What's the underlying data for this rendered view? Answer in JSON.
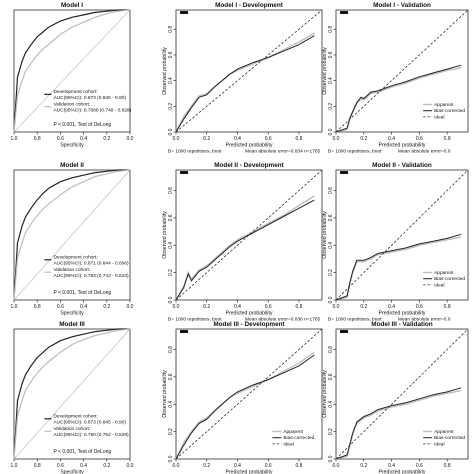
{
  "colors": {
    "dark": "#222222",
    "light": "#bdbdbd",
    "ideal": "#333333",
    "diag": "#c8c8c8"
  },
  "chart_data": [
    {
      "type": "line",
      "kind": "roc",
      "title": "Model I",
      "xlabel": "Specificity",
      "xticks": [
        "1.0",
        "0.8",
        "0.6",
        "0.4",
        "0.2",
        "0.0"
      ],
      "xlim": [
        1.0,
        0.0
      ],
      "ylim": [
        0.0,
        1.0
      ],
      "legend": [
        "Development cohort:",
        "AUC(95%CI): 0.873 (0.846 - 0.90)",
        "Validation cohort:",
        "AUC(95%CI): 0.7688 (0.749 - 0.828)"
      ],
      "pvalue": "P < 0.001, Test of DeLong",
      "series": [
        {
          "name": "Development cohort",
          "x": [
            1.0,
            0.97,
            0.93,
            0.9,
            0.85,
            0.8,
            0.75,
            0.7,
            0.6,
            0.5,
            0.4,
            0.3,
            0.2,
            0.1,
            0.0
          ],
          "y": [
            0.0,
            0.45,
            0.58,
            0.65,
            0.72,
            0.78,
            0.82,
            0.86,
            0.91,
            0.94,
            0.96,
            0.98,
            0.99,
            1.0,
            1.0
          ]
        },
        {
          "name": "Validation cohort",
          "x": [
            1.0,
            0.97,
            0.93,
            0.9,
            0.85,
            0.8,
            0.75,
            0.7,
            0.6,
            0.5,
            0.4,
            0.3,
            0.2,
            0.1,
            0.0
          ],
          "y": [
            0.0,
            0.3,
            0.42,
            0.5,
            0.57,
            0.63,
            0.68,
            0.72,
            0.8,
            0.86,
            0.9,
            0.94,
            0.97,
            0.99,
            1.0
          ]
        }
      ]
    },
    {
      "type": "line",
      "kind": "calibration",
      "title": "Model I - Development",
      "xlabel": "Predicted probability",
      "ylabel": "Observed probability",
      "xticks": [
        "0.0",
        "0.2",
        "0.4",
        "0.6",
        "0.8"
      ],
      "yticks": [
        "0.0",
        "0.2",
        "0.4",
        "0.6",
        "0.8"
      ],
      "xlim": [
        0.0,
        0.95
      ],
      "ylim": [
        0.0,
        0.95
      ],
      "legend": [],
      "footer_left": "B= 1000 repetitions, boot",
      "footer_right": "Mean absolute error=0.034 n=1765",
      "series": [
        {
          "name": "Apparent",
          "x": [
            0.0,
            0.05,
            0.1,
            0.15,
            0.2,
            0.25,
            0.3,
            0.35,
            0.4,
            0.5,
            0.6,
            0.7,
            0.8,
            0.9
          ],
          "y": [
            0.0,
            0.12,
            0.2,
            0.28,
            0.3,
            0.35,
            0.4,
            0.45,
            0.48,
            0.53,
            0.58,
            0.64,
            0.7,
            0.77
          ]
        },
        {
          "name": "Bias-corrected",
          "x": [
            0.0,
            0.05,
            0.1,
            0.15,
            0.2,
            0.25,
            0.3,
            0.35,
            0.4,
            0.5,
            0.6,
            0.7,
            0.8,
            0.9
          ],
          "y": [
            0.0,
            0.1,
            0.19,
            0.27,
            0.29,
            0.35,
            0.4,
            0.45,
            0.49,
            0.54,
            0.58,
            0.63,
            0.68,
            0.75
          ]
        },
        {
          "name": "Ideal",
          "x": [
            0.0,
            0.95
          ],
          "y": [
            0.0,
            0.95
          ]
        }
      ]
    },
    {
      "type": "line",
      "kind": "calibration",
      "title": "Model I - Validation",
      "xlabel": "Predicted probability",
      "ylabel": "Observed probability",
      "xticks": [
        "0.0",
        "0.2",
        "0.4",
        "0.6",
        "0.8"
      ],
      "yticks": [
        "0.0",
        "0.2",
        "0.4",
        "0.6",
        "0.8"
      ],
      "xlim": [
        0.0,
        0.95
      ],
      "ylim": [
        0.0,
        0.95
      ],
      "legend": [
        "Apparent",
        "Bias-corrected",
        "Ideal"
      ],
      "footer_left": "B= 1000 repetitions, boot",
      "footer_right": "Mean absolute error=0.0",
      "series": [
        {
          "name": "Apparent",
          "x": [
            0.0,
            0.08,
            0.1,
            0.12,
            0.15,
            0.18,
            0.2,
            0.25,
            0.3,
            0.4,
            0.5,
            0.6,
            0.7,
            0.8,
            0.9
          ],
          "y": [
            0.0,
            0.02,
            0.1,
            0.15,
            0.22,
            0.26,
            0.25,
            0.3,
            0.31,
            0.35,
            0.38,
            0.42,
            0.45,
            0.48,
            0.5
          ]
        },
        {
          "name": "Bias-corrected",
          "x": [
            0.0,
            0.08,
            0.1,
            0.12,
            0.15,
            0.18,
            0.2,
            0.25,
            0.3,
            0.4,
            0.5,
            0.6,
            0.7,
            0.8,
            0.9
          ],
          "y": [
            0.0,
            0.03,
            0.11,
            0.16,
            0.23,
            0.27,
            0.26,
            0.31,
            0.32,
            0.36,
            0.39,
            0.43,
            0.46,
            0.49,
            0.52
          ]
        },
        {
          "name": "Ideal",
          "x": [
            0.0,
            0.95
          ],
          "y": [
            0.0,
            0.95
          ]
        }
      ]
    },
    {
      "type": "line",
      "kind": "roc",
      "title": "Model II",
      "xlabel": "Specificity",
      "xticks": [
        "1.0",
        "0.8",
        "0.6",
        "0.4",
        "0.2",
        "0.0"
      ],
      "xlim": [
        1.0,
        0.0
      ],
      "ylim": [
        0.0,
        1.0
      ],
      "legend": [
        "Development cohort:",
        "AUC(95%CI): 0.871 (0.844 - 0.896)",
        "Validation cohort:",
        "AUC(95%CI): 0.783 (0.743 - 0.823)"
      ],
      "pvalue": "P < 0.001, Test of DeLong",
      "series": [
        {
          "name": "Development cohort",
          "x": [
            1.0,
            0.97,
            0.93,
            0.9,
            0.85,
            0.8,
            0.75,
            0.7,
            0.6,
            0.5,
            0.4,
            0.3,
            0.2,
            0.1,
            0.0
          ],
          "y": [
            0.0,
            0.44,
            0.57,
            0.64,
            0.71,
            0.77,
            0.82,
            0.86,
            0.91,
            0.94,
            0.96,
            0.98,
            0.99,
            1.0,
            1.0
          ]
        },
        {
          "name": "Validation cohort",
          "x": [
            1.0,
            0.97,
            0.93,
            0.9,
            0.85,
            0.8,
            0.75,
            0.7,
            0.6,
            0.5,
            0.4,
            0.3,
            0.2,
            0.1,
            0.0
          ],
          "y": [
            0.0,
            0.32,
            0.44,
            0.52,
            0.59,
            0.65,
            0.7,
            0.74,
            0.81,
            0.87,
            0.91,
            0.95,
            0.97,
            0.99,
            1.0
          ]
        }
      ]
    },
    {
      "type": "line",
      "kind": "calibration",
      "title": "Model II - Development",
      "xlabel": "Predicted probability",
      "ylabel": "Observed probability",
      "xticks": [
        "0.0",
        "0.2",
        "0.4",
        "0.6",
        "0.8"
      ],
      "yticks": [
        "0.0",
        "0.2",
        "0.4",
        "0.6",
        "0.8"
      ],
      "xlim": [
        0.0,
        0.95
      ],
      "ylim": [
        0.0,
        0.95
      ],
      "legend": [],
      "footer_left": "B= 1000 repetitions, boot",
      "footer_right": "Mean absolute error=0.036 n=1765",
      "series": [
        {
          "name": "Apparent",
          "x": [
            0.0,
            0.05,
            0.08,
            0.1,
            0.15,
            0.2,
            0.25,
            0.3,
            0.35,
            0.4,
            0.5,
            0.6,
            0.7,
            0.8,
            0.9
          ],
          "y": [
            0.0,
            0.1,
            0.2,
            0.15,
            0.22,
            0.25,
            0.3,
            0.35,
            0.4,
            0.44,
            0.5,
            0.56,
            0.62,
            0.69,
            0.76
          ]
        },
        {
          "name": "Bias-corrected",
          "x": [
            0.0,
            0.05,
            0.08,
            0.1,
            0.15,
            0.2,
            0.25,
            0.3,
            0.35,
            0.4,
            0.5,
            0.6,
            0.7,
            0.8,
            0.9
          ],
          "y": [
            0.0,
            0.09,
            0.19,
            0.14,
            0.21,
            0.24,
            0.29,
            0.34,
            0.39,
            0.43,
            0.49,
            0.55,
            0.61,
            0.67,
            0.73
          ]
        },
        {
          "name": "Ideal",
          "x": [
            0.0,
            0.95
          ],
          "y": [
            0.0,
            0.95
          ]
        }
      ]
    },
    {
      "type": "line",
      "kind": "calibration",
      "title": "Model II - Validation",
      "xlabel": "Predicted probability",
      "ylabel": "Observed probability",
      "xticks": [
        "0.0",
        "0.2",
        "0.4",
        "0.6",
        "0.8"
      ],
      "yticks": [
        "0.0",
        "0.2",
        "0.4",
        "0.6",
        "0.8"
      ],
      "xlim": [
        0.0,
        0.95
      ],
      "ylim": [
        0.0,
        0.95
      ],
      "legend": [
        "Apparent",
        "Bias-corrected",
        "Ideal"
      ],
      "footer_left": "B= 1000 repetitions, boot",
      "footer_right": "Mean absolute error=0.0",
      "series": [
        {
          "name": "Apparent",
          "x": [
            0.0,
            0.08,
            0.1,
            0.12,
            0.15,
            0.2,
            0.25,
            0.3,
            0.4,
            0.5,
            0.6,
            0.7,
            0.8,
            0.9
          ],
          "y": [
            0.0,
            0.02,
            0.12,
            0.2,
            0.28,
            0.28,
            0.3,
            0.33,
            0.35,
            0.37,
            0.4,
            0.42,
            0.44,
            0.46
          ]
        },
        {
          "name": "Bias-corrected",
          "x": [
            0.0,
            0.08,
            0.1,
            0.12,
            0.15,
            0.2,
            0.25,
            0.3,
            0.4,
            0.5,
            0.6,
            0.7,
            0.8,
            0.9
          ],
          "y": [
            0.0,
            0.03,
            0.13,
            0.21,
            0.29,
            0.29,
            0.31,
            0.34,
            0.36,
            0.38,
            0.41,
            0.43,
            0.45,
            0.48
          ]
        },
        {
          "name": "Ideal",
          "x": [
            0.0,
            0.95
          ],
          "y": [
            0.0,
            0.95
          ]
        }
      ]
    },
    {
      "type": "line",
      "kind": "roc",
      "title": "Model III",
      "xlabel": "Specificity",
      "xticks": [
        "1.0",
        "0.8",
        "0.6",
        "0.4",
        "0.2",
        "0.0"
      ],
      "xlim": [
        1.0,
        0.0
      ],
      "ylim": [
        0.0,
        1.0
      ],
      "legend": [
        "Development cohort:",
        "AUC(95%CI): 0.873 (0.845 - 0.90)",
        "Validation cohort:",
        "AUC(95%CI): 0.790 (0.752 - 0.828)"
      ],
      "pvalue": "P < 0.001, Test of DeLong",
      "series": [
        {
          "name": "Development cohort",
          "x": [
            1.0,
            0.97,
            0.93,
            0.9,
            0.85,
            0.8,
            0.75,
            0.7,
            0.6,
            0.5,
            0.4,
            0.3,
            0.2,
            0.1,
            0.0
          ],
          "y": [
            0.0,
            0.45,
            0.58,
            0.65,
            0.72,
            0.78,
            0.82,
            0.86,
            0.91,
            0.94,
            0.96,
            0.98,
            0.99,
            1.0,
            1.0
          ]
        },
        {
          "name": "Validation cohort",
          "x": [
            1.0,
            0.97,
            0.93,
            0.9,
            0.85,
            0.8,
            0.75,
            0.7,
            0.6,
            0.5,
            0.4,
            0.3,
            0.2,
            0.1,
            0.0
          ],
          "y": [
            0.0,
            0.33,
            0.45,
            0.53,
            0.6,
            0.66,
            0.71,
            0.75,
            0.82,
            0.88,
            0.92,
            0.95,
            0.97,
            0.99,
            1.0
          ]
        }
      ]
    },
    {
      "type": "line",
      "kind": "calibration",
      "title": "Model III - Development",
      "xlabel": "Predicted probability",
      "ylabel": "Observed probability",
      "xticks": [
        "0.0",
        "0.2",
        "0.4",
        "0.6",
        "0.8"
      ],
      "yticks": [
        "0.0",
        "0.2",
        "0.4",
        "0.6",
        "0.8"
      ],
      "xlim": [
        0.0,
        0.95
      ],
      "ylim": [
        0.0,
        0.95
      ],
      "legend": [
        "Apparent",
        "Bias-corrected",
        "Ideal"
      ],
      "footer_left": "B= 1000 repetitions, boot",
      "footer_right": "Mean absolute error=0.034 n=1765",
      "series": [
        {
          "name": "Apparent",
          "x": [
            0.0,
            0.05,
            0.1,
            0.15,
            0.2,
            0.25,
            0.3,
            0.35,
            0.4,
            0.5,
            0.6,
            0.7,
            0.8,
            0.9
          ],
          "y": [
            0.0,
            0.12,
            0.2,
            0.27,
            0.3,
            0.35,
            0.4,
            0.45,
            0.48,
            0.53,
            0.58,
            0.64,
            0.7,
            0.78
          ]
        },
        {
          "name": "Bias-corrected",
          "x": [
            0.0,
            0.05,
            0.1,
            0.15,
            0.2,
            0.25,
            0.3,
            0.35,
            0.4,
            0.5,
            0.6,
            0.7,
            0.8,
            0.9
          ],
          "y": [
            0.0,
            0.1,
            0.19,
            0.26,
            0.29,
            0.35,
            0.4,
            0.45,
            0.49,
            0.54,
            0.58,
            0.63,
            0.68,
            0.76
          ]
        },
        {
          "name": "Ideal",
          "x": [
            0.0,
            0.95
          ],
          "y": [
            0.0,
            0.95
          ]
        }
      ]
    },
    {
      "type": "line",
      "kind": "calibration",
      "title": "Model III - Validation",
      "xlabel": "Predicted probability",
      "ylabel": "Observed probability",
      "xticks": [
        "0.0",
        "0.2",
        "0.4",
        "0.6",
        "0.8"
      ],
      "yticks": [
        "0.0",
        "0.2",
        "0.4",
        "0.6",
        "0.8"
      ],
      "xlim": [
        0.0,
        0.95
      ],
      "ylim": [
        0.0,
        0.95
      ],
      "legend": [
        "Apparent",
        "Bias-corrected",
        "Ideal"
      ],
      "footer_left": "B= 1000 repetitions, boot",
      "footer_right": "Mean absolute error=0.0",
      "series": [
        {
          "name": "Apparent",
          "x": [
            0.0,
            0.08,
            0.1,
            0.12,
            0.15,
            0.2,
            0.25,
            0.3,
            0.4,
            0.5,
            0.6,
            0.7,
            0.8,
            0.9
          ],
          "y": [
            0.0,
            0.02,
            0.1,
            0.18,
            0.26,
            0.3,
            0.32,
            0.35,
            0.38,
            0.4,
            0.43,
            0.46,
            0.48,
            0.5
          ]
        },
        {
          "name": "Bias-corrected",
          "x": [
            0.0,
            0.08,
            0.1,
            0.12,
            0.15,
            0.2,
            0.25,
            0.3,
            0.4,
            0.5,
            0.6,
            0.7,
            0.8,
            0.9
          ],
          "y": [
            0.0,
            0.03,
            0.11,
            0.19,
            0.27,
            0.31,
            0.33,
            0.36,
            0.39,
            0.41,
            0.44,
            0.47,
            0.49,
            0.52
          ]
        },
        {
          "name": "Ideal",
          "x": [
            0.0,
            0.95
          ],
          "y": [
            0.0,
            0.95
          ]
        }
      ]
    }
  ]
}
